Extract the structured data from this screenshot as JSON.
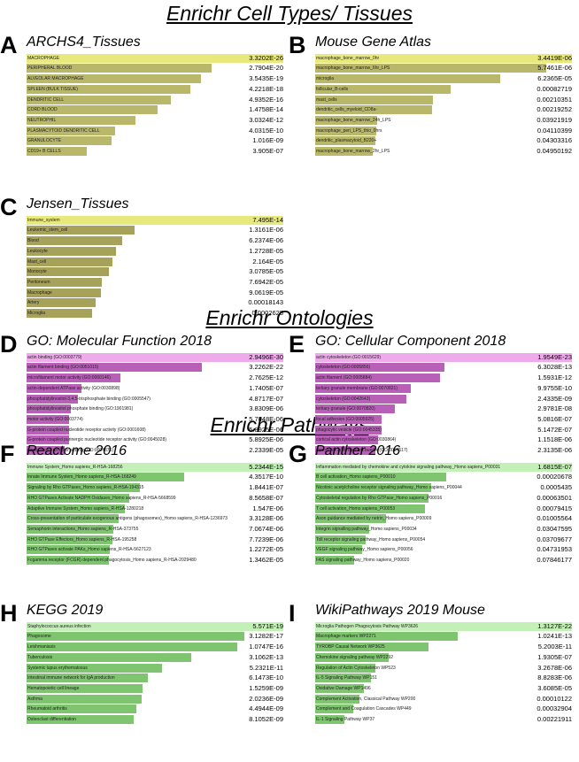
{
  "sections": [
    {
      "title": "Enrichr Cell Types/ Tissues"
    },
    {
      "title": "Enrichr Ontologies"
    },
    {
      "title": "Enrichr Pathways"
    }
  ],
  "chart_data": [
    {
      "type": "bar",
      "letter": "A",
      "title": "ARCHS4_Tissues",
      "color_top": "#f3f58f",
      "color": "#b8b76a",
      "top_color": "#e8e97c",
      "categories": [
        "MACROPHAGE",
        "PERIPHERAL BLOOD",
        "ALVEOLAR MACROPHAGE",
        "SPLEEN (BULK TISSUE)",
        "DENDRITIC CELL",
        "CORD BLOOD",
        "NEUTROPHIL",
        "PLASMACYTOID DENDRITIC CELL",
        "GRANULOCYTE",
        "CD19+ B CELLS"
      ],
      "values": [
        "3.3202E-26",
        "2.7904E-20",
        "3.5435E-19",
        "4.2218E-18",
        "4.9352E-16",
        "1.4758E-14",
        "3.0324E-12",
        "4.0315E-10",
        "1.016E-09",
        "3.905E-07"
      ]
    },
    {
      "type": "bar",
      "letter": "B",
      "title": "Mouse Gene Atlas",
      "color_top": "#f3f58f",
      "color": "#b8b76a",
      "top_color": "#e8e97c",
      "categories": [
        "macrophage_bone_marrow_0hr",
        "macrophage_bone_marrow_6hr_LPS",
        "microglia",
        "follicular_B-cells",
        "mast_cells",
        "dendritic_cells_myeloid_CD8a-",
        "macrophage_bone_marrow_24h_LPS",
        "macrophage_peri_LPS_thio_0hrs",
        "dendritic_plasmacytoid_B220+",
        "macrophage_bone_marrow_2hr_LPS"
      ],
      "values": [
        "3.4419E-06",
        "5.7461E-06",
        "6.2365E-05",
        "0.00082719",
        "0.00210351",
        "0.00219252",
        "0.03921919",
        "0.04110399",
        "0.04303316",
        "0.04950192"
      ]
    },
    {
      "type": "bar",
      "letter": "C",
      "title": "Jensen_Tissues",
      "color_top": "#f3f58f",
      "color": "#a7a25a",
      "top_color": "#e8e97c",
      "categories": [
        "Immune_system",
        "Leukemic_stem_cell",
        "Blood",
        "Leukocyte",
        "Mast_cell",
        "Monocyte",
        "Peritoneum",
        "Macrophage",
        "Artery",
        "Microglia"
      ],
      "values": [
        "7.495E-14",
        "1.3161E-06",
        "6.2374E-06",
        "1.2728E-05",
        "2.164E-05",
        "3.0785E-05",
        "7.6942E-05",
        "9.0619E-05",
        "0.00018143",
        "0.0002625"
      ]
    },
    {
      "type": "bar",
      "letter": "D",
      "title": "GO: Molecular Function 2018",
      "color_top": "#f5b8f0",
      "color": "#b860b8",
      "top_color": "#eeaaea",
      "categories": [
        "actin binding (GO:0003779)",
        "actin filament binding (GO:0051015)",
        "microfilament motor activity (GO:0000146)",
        "actin-dependent ATPase activity (GO:0030898)",
        "phosphatidylinositol-3,4,5-trisphosphate binding (GO:0005547)",
        "phosphatidylinositol phosphate binding (GO:1901981)",
        "motor activity (GO:0003774)",
        "G-protein coupled nucleotide receptor activity (GO:0001608)",
        "G-protein coupled purinergic nucleotide receptor activity (GO:0045028)",
        "complement receptor activity (GO:0004875)"
      ],
      "values": [
        "2.9496E-30",
        "3.2262E-22",
        "2.7625E-12",
        "1.7405E-07",
        "4.8717E-07",
        "3.8309E-06",
        "5.7048E-06",
        "5.8925E-06",
        "5.8925E-06",
        "2.2339E-05"
      ]
    },
    {
      "type": "bar",
      "letter": "E",
      "title": "GO: Cellular Component 2018",
      "color_top": "#f5b8f0",
      "color": "#b860b8",
      "top_color": "#eeaaea",
      "categories": [
        "actin cytoskeleton (GO:0015629)",
        "cytoskeleton (GO:0005856)",
        "actin filament (GO:0005884)",
        "tertiary granule membrane (GO:0070821)",
        "cytoskeleton (GO:0042643)",
        "tertiary granule (GO:0070820)",
        "focal adhesion (GO:0005925)",
        "phagocytic vesicle (GO:0045335)",
        "cortical actin cytoskeleton (GO:0030864)",
        "contractile actin filament bundle (GO:0097517)"
      ],
      "values": [
        "1.9549E-23",
        "6.3028E-13",
        "1.5931E-12",
        "9.9755E-10",
        "2.4335E-09",
        "2.9781E-08",
        "5.0816E-07",
        "5.1472E-07",
        "1.1518E-06",
        "2.3135E-06"
      ]
    },
    {
      "type": "bar",
      "letter": "F",
      "title": "Reactome 2016",
      "color_top": "#ccf5c0",
      "color": "#7fc46f",
      "top_color": "#c2f0b6",
      "categories": [
        "Immune System_Homo sapiens_R-HSA-168256",
        "Innate Immune System_Homo sapiens_R-HSA-168249",
        "Signaling by Rho GTPases_Homo sapiens_R-HSA-194315",
        "RHO GTPases Activate NADPH Oxidases_Homo sapiens_R-HSA-5668599",
        "Adaptive Immune System_Homo sapiens_R-HSA-1280218",
        "Cross-presentation of particulate exogenous antigens (phagosomes)_Homo sapiens_R-HSA-1236973",
        "Semaphorin interactions_Homo sapiens_R-HSA-373755",
        "RHO GTPase Effectors_Homo sapiens_R-HSA-195258",
        "RHO GTPases activate PAKs_Homo sapiens_R-HSA-5627123",
        "Fcgamma receptor (FCGR) dependent phagocytosis_Homo sapiens_R-HSA-2029480"
      ],
      "values": [
        "5.2344E-15",
        "4.3517E-10",
        "1.8441E-07",
        "8.5658E-07",
        "1.547E-06",
        "3.3128E-06",
        "7.0674E-06",
        "7.7239E-06",
        "1.2272E-05",
        "1.3462E-05"
      ]
    },
    {
      "type": "bar",
      "letter": "G",
      "title": "Panther 2016",
      "color_top": "#ccf5c0",
      "color": "#7fc46f",
      "top_color": "#c2f0b6",
      "categories": [
        "Inflammation mediated by chemokine and cytokine signaling pathway_Homo sapiens_P00031",
        "B cell activation_Homo sapiens_P00010",
        "Nicotinic acetylcholine receptor signaling pathway_Homo sapiens_P00044",
        "Cytoskeletal regulation by Rho GTPase_Homo sapiens_P00016",
        "T cell activation_Homo sapiens_P00053",
        "Axon guidance mediated by netrin_Homo sapiens_P00009",
        "Integrin signalling pathway_Homo sapiens_P00034",
        "Toll receptor signaling pathway_Homo sapiens_P00054",
        "VEGF signaling pathway_Homo sapiens_P00056",
        "FAS signaling pathway_Homo sapiens_P00020"
      ],
      "values": [
        "1.6815E-07",
        "0.00020678",
        "0.0005435",
        "0.00063501",
        "0.00079415",
        "0.01005564",
        "0.03047595",
        "0.03709677",
        "0.04731953",
        "0.07846177"
      ]
    },
    {
      "type": "bar",
      "letter": "H",
      "title": "KEGG 2019",
      "color_top": "#ccf5c0",
      "color": "#7fc46f",
      "top_color": "#c2f0b6",
      "categories": [
        "Staphylococcus aureus infection",
        "Phagosome",
        "Leishmaniasis",
        "Tuberculosis",
        "Systemic lupus erythematosus",
        "Intestinal immune network for IgA production",
        "Hematopoietic cell lineage",
        "Asthma",
        "Rheumatoid arthritis",
        "Osteoclast differentiation"
      ],
      "values": [
        "5.571E-19",
        "3.1282E-17",
        "1.0747E-16",
        "3.1062E-13",
        "5.2321E-11",
        "6.1473E-10",
        "1.5259E-09",
        "2.0236E-09",
        "4.4944E-09",
        "8.1052E-09"
      ]
    },
    {
      "type": "bar",
      "letter": "I",
      "title": "WikiPathways 2019 Mouse",
      "color_top": "#ccf5c0",
      "color": "#7fc46f",
      "top_color": "#c2f0b6",
      "categories": [
        "Microglia Pathogen Phagocytosis Pathway WP3626",
        "Macrophage markers WP2271",
        "TYROBP Causal Network WP3625",
        "Chemokine signaling pathway WP2292",
        "Regulation of Actin Cytoskeleton WP523",
        "IL-5 Signaling Pathway WP151",
        "Oxidative Damage WP1496",
        "Complement Activation, Classical Pathway WP200",
        "Complement and Coagulation Cascades WP449",
        "IL-1 Signaling Pathway WP37"
      ],
      "values": [
        "1.3127E-22",
        "1.0241E-13",
        "5.2003E-11",
        "1.9305E-07",
        "3.2678E-06",
        "8.8283E-06",
        "3.6085E-05",
        "0.00010122",
        "0.00032904",
        "0.00221911"
      ]
    }
  ]
}
